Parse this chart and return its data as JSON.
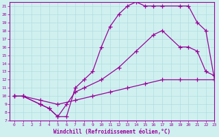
{
  "xlabel": "Windchill (Refroidissement éolien,°C)",
  "line1_x": [
    0,
    1,
    3,
    4,
    5,
    6,
    7,
    8,
    9,
    10,
    11,
    12,
    13,
    14,
    15,
    16,
    17,
    19,
    20,
    21,
    22,
    23
  ],
  "line1_y": [
    10,
    10,
    9,
    8.5,
    7.5,
    7.5,
    11,
    12,
    13,
    16,
    18.5,
    20,
    21,
    21.5,
    21,
    21,
    21,
    21,
    21,
    19,
    18,
    12
  ],
  "line2_x": [
    0,
    1,
    3,
    4,
    5,
    6,
    7,
    8,
    10,
    12,
    14,
    16,
    17,
    19,
    20,
    21,
    22,
    23
  ],
  "line2_y": [
    10,
    10,
    9,
    8.5,
    7.5,
    9,
    10.5,
    11,
    12,
    13.5,
    15.5,
    17.5,
    18,
    16,
    16,
    15.5,
    13,
    12.5
  ],
  "line3_x": [
    0,
    1,
    3,
    5,
    7,
    9,
    11,
    13,
    15,
    17,
    19,
    21,
    23
  ],
  "line3_y": [
    10,
    10,
    9.5,
    9,
    9.5,
    10,
    10.5,
    11,
    11.5,
    12,
    12,
    12,
    12
  ],
  "color": "#990099",
  "bg_color": "#d0f0f0",
  "grid_color": "#b0dede",
  "xlim": [
    -0.5,
    23
  ],
  "ylim": [
    7,
    21.5
  ],
  "xticks": [
    0,
    1,
    2,
    3,
    4,
    5,
    6,
    7,
    8,
    9,
    10,
    11,
    12,
    13,
    14,
    15,
    16,
    17,
    18,
    19,
    20,
    21,
    22,
    23
  ],
  "yticks": [
    7,
    8,
    9,
    10,
    11,
    12,
    13,
    14,
    15,
    16,
    17,
    18,
    19,
    20,
    21
  ]
}
